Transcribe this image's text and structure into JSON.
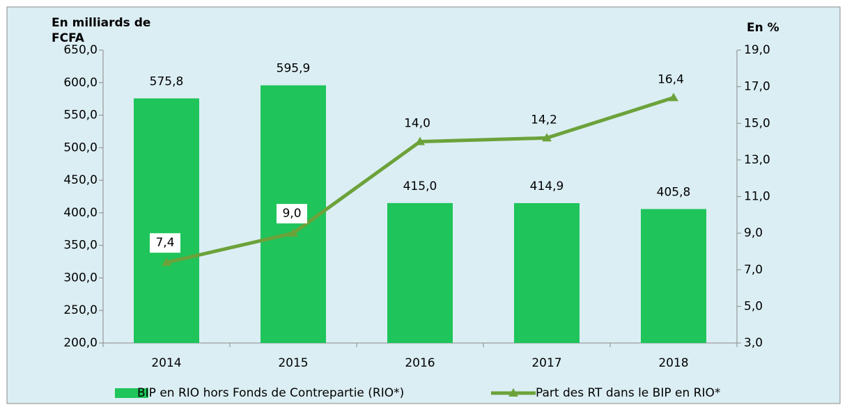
{
  "chart_data": {
    "type": "bar",
    "categories": [
      "2014",
      "2015",
      "2016",
      "2017",
      "2018"
    ],
    "series": [
      {
        "name": "BIP en RIO hors Fonds de Contrepartie (RIO*)",
        "type": "bar",
        "color": "#1fc45a",
        "values": [
          575.8,
          595.9,
          415.0,
          414.9,
          405.8
        ],
        "value_labels": [
          "575,8",
          "595,9",
          "415,0",
          "414,9",
          "405,8"
        ]
      },
      {
        "name": "Part des RT dans le  BIP en RIO*",
        "type": "line",
        "axis": "y2",
        "color": "#6ca23a",
        "values": [
          7.4,
          9.0,
          14.0,
          14.2,
          16.4
        ],
        "value_labels": [
          "7,4",
          "9,0",
          "14,0",
          "14,2",
          "16,4"
        ]
      }
    ],
    "ylabel": "En milliards de FCFA",
    "y2label": "En %",
    "ylim": [
      200,
      650
    ],
    "yticks": [
      {
        "value": 200,
        "label": "200,0"
      },
      {
        "value": 250,
        "label": "250,0"
      },
      {
        "value": 300,
        "label": "300,0"
      },
      {
        "value": 350,
        "label": "350,0"
      },
      {
        "value": 400,
        "label": "400,0"
      },
      {
        "value": 450,
        "label": "450,0"
      },
      {
        "value": 500,
        "label": "500,0"
      },
      {
        "value": 550,
        "label": "550,0"
      },
      {
        "value": 600,
        "label": "600,0"
      },
      {
        "value": 650,
        "label": "650,0"
      }
    ],
    "y2lim": [
      3,
      19
    ],
    "y2ticks": [
      {
        "value": 3,
        "label": "3,0"
      },
      {
        "value": 5,
        "label": "5,0"
      },
      {
        "value": 7,
        "label": "7,0"
      },
      {
        "value": 9,
        "label": "9,0"
      },
      {
        "value": 11,
        "label": "11,0"
      },
      {
        "value": 13,
        "label": "13,0"
      },
      {
        "value": 15,
        "label": "15,0"
      },
      {
        "value": 17,
        "label": "17,0"
      },
      {
        "value": 19,
        "label": "19,0"
      }
    ],
    "legend": "bottom",
    "grid": false
  }
}
